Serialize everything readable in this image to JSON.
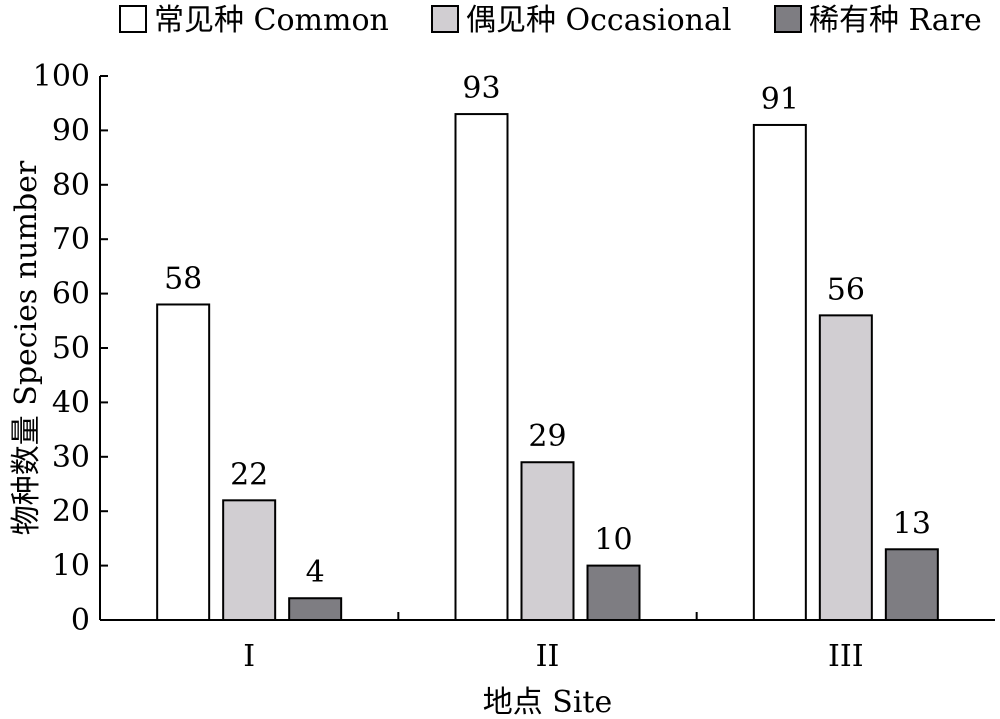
{
  "chart_data": {
    "type": "bar",
    "categories": [
      "I",
      "II",
      "III"
    ],
    "series": [
      {
        "name": "常见种 Common",
        "values": [
          58,
          93,
          91
        ],
        "color": "#ffffff"
      },
      {
        "name": "偶见种 Occasional",
        "values": [
          22,
          29,
          56
        ],
        "color": "#d1ced2"
      },
      {
        "name": "稀有种 Rare",
        "values": [
          4,
          10,
          13
        ],
        "color": "#7e7d82"
      }
    ],
    "xlabel": "地点 Site",
    "ylabel": "物种数量 Species number",
    "ylim": [
      0,
      100
    ],
    "yticks": [
      0,
      10,
      20,
      30,
      40,
      50,
      60,
      70,
      80,
      90,
      100
    ],
    "legend_position": "top",
    "grid": false
  }
}
